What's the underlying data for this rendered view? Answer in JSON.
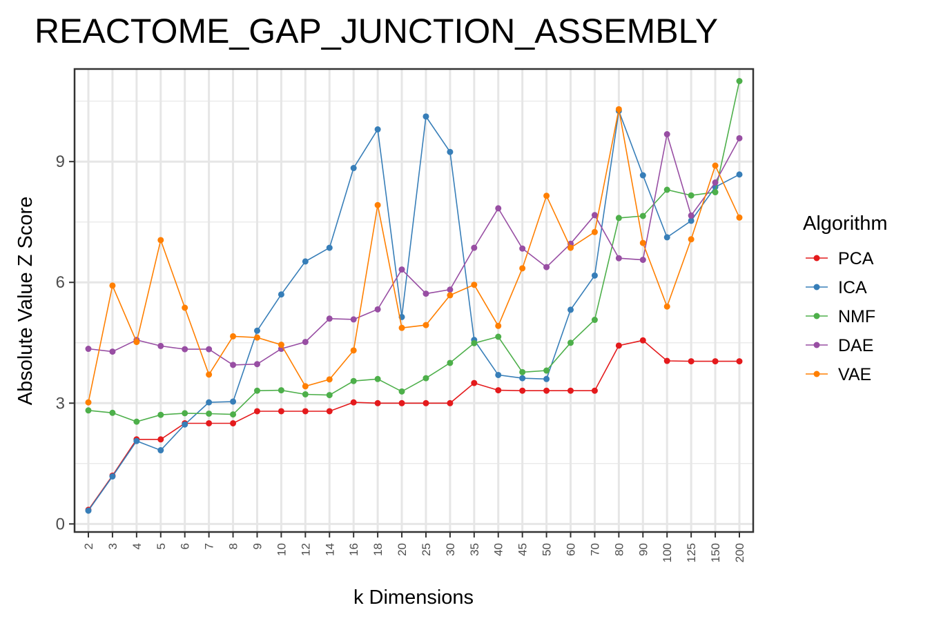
{
  "chart_data": {
    "type": "line",
    "title": "REACTOME_GAP_JUNCTION_ASSEMBLY",
    "xlabel": "k Dimensions",
    "ylabel": "Absolute Value Z Score",
    "categories": [
      "2",
      "3",
      "4",
      "5",
      "6",
      "7",
      "8",
      "9",
      "10",
      "12",
      "14",
      "16",
      "18",
      "20",
      "25",
      "30",
      "35",
      "40",
      "45",
      "50",
      "60",
      "70",
      "80",
      "90",
      "100",
      "125",
      "150",
      "200"
    ],
    "yticks": [
      0,
      3,
      6,
      9
    ],
    "ylim": [
      -0.2,
      11.3
    ],
    "grid": true,
    "legend": {
      "title": "Algorithm",
      "position": "right"
    },
    "series": [
      {
        "name": "PCA",
        "color": "#e41a1c",
        "values": [
          0.35,
          1.2,
          2.1,
          2.1,
          2.5,
          2.5,
          2.5,
          2.8,
          2.8,
          2.8,
          2.8,
          3.02,
          3.0,
          3.0,
          3.0,
          3.0,
          3.5,
          3.32,
          3.31,
          3.31,
          3.31,
          3.31,
          4.43,
          4.56,
          4.05,
          4.04,
          4.04,
          4.04
        ]
      },
      {
        "name": "ICA",
        "color": "#377eb8",
        "values": [
          0.33,
          1.18,
          2.06,
          1.83,
          2.47,
          3.02,
          3.04,
          4.8,
          5.7,
          6.52,
          6.86,
          8.84,
          9.8,
          5.14,
          10.12,
          9.24,
          4.57,
          3.7,
          3.62,
          3.6,
          5.32,
          6.17,
          10.26,
          8.66,
          7.12,
          7.53,
          8.37,
          8.68
        ]
      },
      {
        "name": "NMF",
        "color": "#4daf4a",
        "values": [
          2.82,
          2.76,
          2.54,
          2.71,
          2.75,
          2.74,
          2.72,
          3.31,
          3.32,
          3.22,
          3.2,
          3.55,
          3.6,
          3.29,
          3.62,
          4.0,
          4.49,
          4.65,
          3.77,
          3.81,
          4.5,
          5.07,
          7.6,
          7.65,
          8.3,
          8.16,
          8.24,
          11.0
        ]
      },
      {
        "name": "DAE",
        "color": "#984ea3",
        "values": [
          4.35,
          4.28,
          4.57,
          4.42,
          4.34,
          4.34,
          3.95,
          3.97,
          4.35,
          4.52,
          5.1,
          5.08,
          5.33,
          6.32,
          5.72,
          5.82,
          6.86,
          7.84,
          6.84,
          6.38,
          6.96,
          7.67,
          6.6,
          6.56,
          9.68,
          7.66,
          8.48,
          9.58
        ]
      },
      {
        "name": "VAE",
        "color": "#ff7f00",
        "values": [
          3.02,
          5.92,
          4.52,
          7.05,
          5.37,
          3.71,
          4.66,
          4.63,
          4.45,
          3.42,
          3.59,
          4.31,
          7.92,
          4.87,
          4.94,
          5.68,
          5.94,
          4.92,
          6.35,
          8.15,
          6.86,
          7.25,
          10.3,
          6.98,
          5.4,
          7.07,
          8.9,
          7.61
        ]
      }
    ]
  }
}
